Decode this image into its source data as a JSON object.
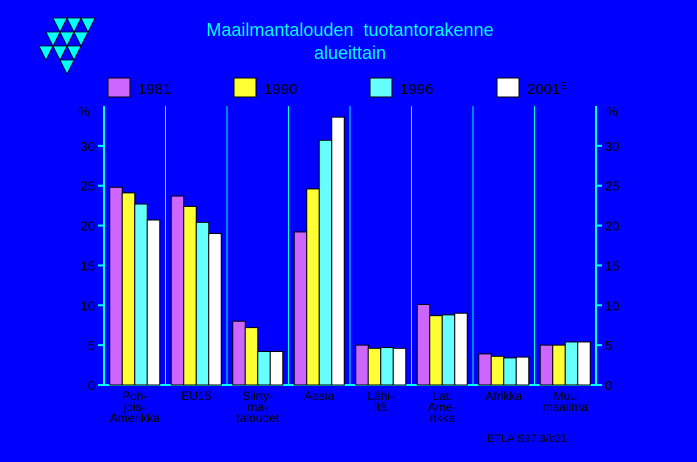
{
  "chart_data": {
    "type": "bar",
    "title": "Maailmantalouden  tuotantorakenne",
    "subtitle": "alueittain",
    "ylabel_left": "%",
    "ylabel_right": "%",
    "ylim": [
      0,
      35
    ],
    "yticks": [
      0,
      5,
      10,
      15,
      20,
      25,
      30
    ],
    "grid": false,
    "legend_position": "top",
    "categories": [
      [
        "Poh-",
        "jois-",
        "Amerikka"
      ],
      [
        "EU15"
      ],
      [
        "Siirty-",
        "mä-",
        "taloudet"
      ],
      [
        "Aasia"
      ],
      [
        "Lähi-",
        "itä"
      ],
      [
        "Lat.",
        "Ame-",
        "rikka"
      ],
      [
        "Afrikka"
      ],
      [
        "Muu",
        "maailma"
      ]
    ],
    "series": [
      {
        "name": "1981",
        "color": "#CC66FF",
        "values": [
          24.8,
          23.7,
          8.0,
          19.2,
          5.0,
          10.1,
          3.9,
          5.0
        ]
      },
      {
        "name": "1990",
        "color": "#FFFF33",
        "values": [
          24.1,
          22.4,
          7.2,
          24.6,
          4.6,
          8.7,
          3.6,
          5.0
        ]
      },
      {
        "name": "1996",
        "color": "#66FFFF",
        "values": [
          22.7,
          20.4,
          4.2,
          30.7,
          4.7,
          8.8,
          3.4,
          5.4
        ]
      },
      {
        "name": "2001",
        "legend_suffix": "E",
        "color": "#FFFFFF",
        "values": [
          20.7,
          19.0,
          4.2,
          33.6,
          4.6,
          9.0,
          3.5,
          5.4
        ]
      }
    ],
    "source": "ETLA S97.3/b31"
  },
  "colors": {
    "background": "#0000FF",
    "title": "#00FFFF",
    "axis": "#00FFFF",
    "text": "#000000",
    "logo": "#00FFFF"
  },
  "logo": {
    "icon": "triangle-cluster-logo"
  }
}
